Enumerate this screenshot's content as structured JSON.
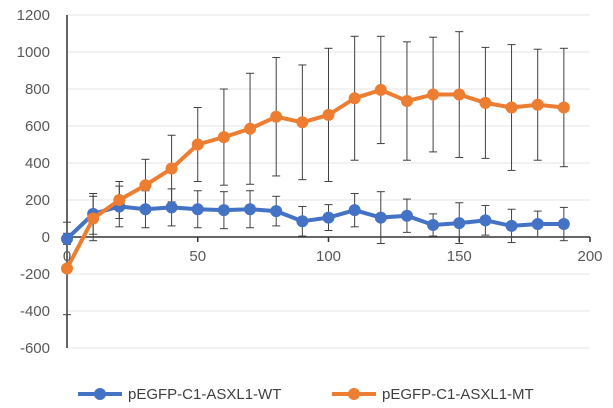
{
  "chart_data": {
    "type": "scatter",
    "title": "",
    "xlabel": "",
    "ylabel": "",
    "xlim": [
      0,
      200
    ],
    "ylim": [
      -600,
      1200
    ],
    "x_ticks": [
      0,
      50,
      100,
      150,
      200
    ],
    "y_ticks": [
      -600,
      -400,
      -200,
      0,
      200,
      400,
      600,
      800,
      1000,
      1200
    ],
    "x_tick_labels": [
      "0",
      "50",
      "100",
      "150",
      "200"
    ],
    "y_tick_labels": [
      "-600",
      "-400",
      "-200",
      "0",
      "200",
      "400",
      "600",
      "800",
      "1000",
      "1200"
    ],
    "grid": "horizontal",
    "legend_position": "bottom",
    "x": [
      0,
      10,
      20,
      30,
      40,
      50,
      60,
      70,
      80,
      90,
      100,
      110,
      120,
      130,
      140,
      150,
      160,
      170,
      180,
      190
    ],
    "series": [
      {
        "name": "pEGFP-C1-ASXL1-WT",
        "color": "#4472C4",
        "values": [
          -10,
          125,
          165,
          150,
          160,
          150,
          145,
          150,
          140,
          85,
          105,
          145,
          105,
          115,
          65,
          75,
          90,
          60,
          70,
          70
        ],
        "errors": [
          30,
          110,
          110,
          100,
          100,
          100,
          100,
          100,
          80,
          80,
          70,
          90,
          140,
          90,
          60,
          110,
          80,
          90,
          70,
          90
        ]
      },
      {
        "name": "pEGFP-C1-ASXL1-MT",
        "color": "#ED7D31",
        "values": [
          -170,
          100,
          200,
          280,
          370,
          500,
          540,
          585,
          650,
          620,
          660,
          750,
          795,
          735,
          770,
          770,
          725,
          700,
          715,
          700
        ],
        "errors": [
          250,
          120,
          100,
          140,
          180,
          200,
          260,
          300,
          320,
          310,
          360,
          335,
          290,
          320,
          310,
          340,
          300,
          340,
          300,
          320
        ]
      }
    ]
  }
}
